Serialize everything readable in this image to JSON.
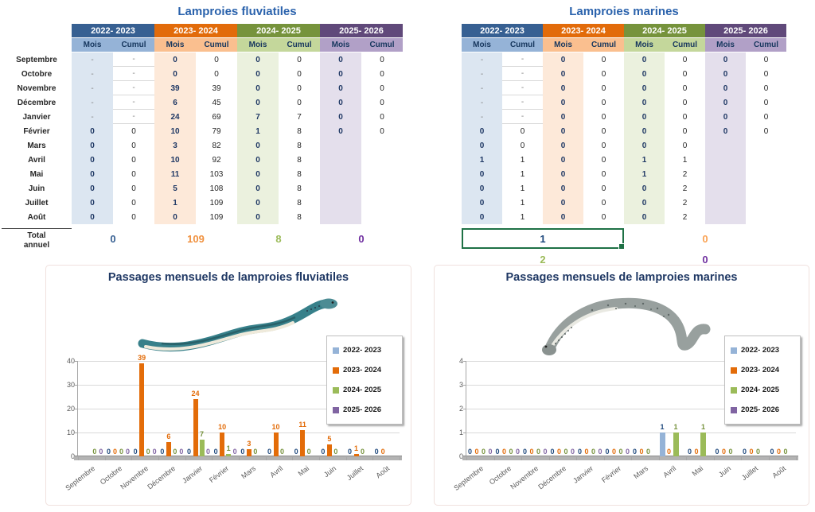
{
  "series_meta": [
    {
      "name": "2022- 2023",
      "header_bg": "#376092",
      "subheader_bg": "#95B3D7",
      "column_bg": "#DCE6F1",
      "bar_color": "#95B3D7",
      "label_color": "#1F497D"
    },
    {
      "name": "2023- 2024",
      "header_bg": "#E26B0A",
      "subheader_bg": "#FABF8F",
      "column_bg": "#FDE9D9",
      "bar_color": "#E36C09",
      "label_color": "#E36C09"
    },
    {
      "name": "2024- 2025",
      "header_bg": "#76933C",
      "subheader_bg": "#C4D79B",
      "column_bg": "#EBF1DE",
      "bar_color": "#9BBB59",
      "label_color": "#76923C"
    },
    {
      "name": "2025- 2026",
      "header_bg": "#60497A",
      "subheader_bg": "#B1A0C7",
      "column_bg": "#E4DFEC",
      "bar_color": "#8064A2",
      "label_color": "#8064A2"
    }
  ],
  "months": [
    "Septembre",
    "Octobre",
    "Novembre",
    "Décembre",
    "Janvier",
    "Février",
    "Mars",
    "Avril",
    "Mai",
    "Juin",
    "Juillet",
    "Août"
  ],
  "column_headers": {
    "mois": "Mois",
    "cumul": "Cumul"
  },
  "tables": [
    {
      "title": "Lamproies fluviatiles",
      "total_label_line1": "Total",
      "total_label_line2": "annuel",
      "rows": [
        [
          "-",
          "-",
          "0",
          "0",
          "0",
          "0",
          "0",
          "0"
        ],
        [
          "-",
          "-",
          "0",
          "0",
          "0",
          "0",
          "0",
          "0"
        ],
        [
          "-",
          "-",
          "39",
          "39",
          "0",
          "0",
          "0",
          "0"
        ],
        [
          "-",
          "-",
          "6",
          "45",
          "0",
          "0",
          "0",
          "0"
        ],
        [
          "-",
          "-",
          "24",
          "69",
          "7",
          "7",
          "0",
          "0"
        ],
        [
          "0",
          "0",
          "10",
          "79",
          "1",
          "8",
          "0",
          "0"
        ],
        [
          "0",
          "0",
          "3",
          "82",
          "0",
          "8",
          "",
          ""
        ],
        [
          "0",
          "0",
          "10",
          "92",
          "0",
          "8",
          "",
          ""
        ],
        [
          "0",
          "0",
          "11",
          "103",
          "0",
          "8",
          "",
          ""
        ],
        [
          "0",
          "0",
          "5",
          "108",
          "0",
          "8",
          "",
          ""
        ],
        [
          "0",
          "0",
          "1",
          "109",
          "0",
          "8",
          "",
          ""
        ],
        [
          "0",
          "0",
          "0",
          "109",
          "0",
          "8",
          "",
          ""
        ]
      ],
      "totals": [
        "0",
        "109",
        "8",
        "0"
      ],
      "totals_colors": [
        "#376092",
        "#F0913F",
        "#9BBB59",
        "#7030A0"
      ],
      "selected_total_index": null
    },
    {
      "title": "Lamproies marines",
      "rows": [
        [
          "-",
          "-",
          "0",
          "0",
          "0",
          "0",
          "0",
          "0"
        ],
        [
          "-",
          "-",
          "0",
          "0",
          "0",
          "0",
          "0",
          "0"
        ],
        [
          "-",
          "-",
          "0",
          "0",
          "0",
          "0",
          "0",
          "0"
        ],
        [
          "-",
          "-",
          "0",
          "0",
          "0",
          "0",
          "0",
          "0"
        ],
        [
          "-",
          "-",
          "0",
          "0",
          "0",
          "0",
          "0",
          "0"
        ],
        [
          "0",
          "0",
          "0",
          "0",
          "0",
          "0",
          "0",
          "0"
        ],
        [
          "0",
          "0",
          "0",
          "0",
          "0",
          "0",
          "",
          ""
        ],
        [
          "1",
          "1",
          "0",
          "0",
          "1",
          "1",
          "",
          ""
        ],
        [
          "0",
          "1",
          "0",
          "0",
          "1",
          "2",
          "",
          ""
        ],
        [
          "0",
          "1",
          "0",
          "0",
          "0",
          "2",
          "",
          ""
        ],
        [
          "0",
          "1",
          "0",
          "0",
          "0",
          "2",
          "",
          ""
        ],
        [
          "0",
          "1",
          "0",
          "0",
          "0",
          "2",
          "",
          ""
        ]
      ],
      "totals": [
        "1",
        "0",
        "2",
        "0"
      ],
      "totals_colors": [
        "#1F497D",
        "#F9A253",
        "#9BBB59",
        "#7030A0"
      ],
      "selected_total_index": 0
    }
  ],
  "selection": {
    "border_color": "#1E7145"
  },
  "chart_data": [
    {
      "type": "bar",
      "title": "Passages mensuels de lamproies fluviatiles",
      "categories": [
        "Septembre",
        "Octobre",
        "Novembre",
        "Décembre",
        "Janvier",
        "Février",
        "Mars",
        "Avril",
        "Mai",
        "Juin",
        "Juillet",
        "Août"
      ],
      "ylim": [
        0,
        40
      ],
      "yticks": [
        0,
        10,
        20,
        30,
        40
      ],
      "grid": true,
      "legend_position": "right-inside",
      "series": [
        {
          "name": "2022- 2023",
          "values": [
            null,
            0,
            0,
            0,
            0,
            0,
            0,
            0,
            0,
            0,
            0,
            0
          ]
        },
        {
          "name": "2023- 2024",
          "values": [
            0,
            0,
            39,
            6,
            24,
            10,
            3,
            10,
            11,
            5,
            1,
            0
          ]
        },
        {
          "name": "2024- 2025",
          "values": [
            0,
            0,
            0,
            0,
            7,
            1,
            0,
            0,
            0,
            0,
            0,
            0
          ]
        },
        {
          "name": "2025- 2026",
          "values": [
            0,
            0,
            0,
            0,
            0,
            0,
            null,
            null,
            null,
            null,
            null,
            null
          ]
        }
      ],
      "visible_marks": [
        [
          [
            2,
            null,
            "0"
          ],
          [
            3,
            null,
            "0"
          ]
        ],
        [
          [
            0,
            null,
            "0"
          ],
          [
            1,
            null,
            "0"
          ],
          [
            2,
            null,
            "0"
          ],
          [
            3,
            null,
            "0"
          ]
        ],
        [
          [
            0,
            null,
            "0"
          ],
          [
            1,
            39,
            "39"
          ],
          [
            2,
            null,
            "0"
          ],
          [
            3,
            null,
            "0"
          ]
        ],
        [
          [
            0,
            null,
            "0"
          ],
          [
            1,
            6,
            "6"
          ],
          [
            2,
            null,
            "0"
          ],
          [
            3,
            null,
            "0"
          ]
        ],
        [
          [
            0,
            null,
            "0"
          ],
          [
            1,
            24,
            "24"
          ],
          [
            2,
            7,
            "7"
          ],
          [
            3,
            null,
            "0"
          ]
        ],
        [
          [
            0,
            null,
            "0"
          ],
          [
            1,
            10,
            "10"
          ],
          [
            2,
            1,
            "1"
          ],
          [
            3,
            null,
            "0"
          ]
        ],
        [
          [
            0,
            null,
            "0"
          ],
          [
            1,
            3,
            "3"
          ],
          [
            2,
            null,
            "0"
          ]
        ],
        [
          [
            0,
            null,
            "0"
          ],
          [
            1,
            10,
            "10"
          ],
          [
            2,
            null,
            "0"
          ]
        ],
        [
          [
            0,
            null,
            "0"
          ],
          [
            1,
            11,
            "11"
          ],
          [
            2,
            null,
            "0"
          ]
        ],
        [
          [
            0,
            null,
            "0"
          ],
          [
            1,
            5,
            "5"
          ],
          [
            2,
            null,
            "0"
          ]
        ],
        [
          [
            0,
            null,
            "0"
          ],
          [
            1,
            1,
            "1"
          ],
          [
            2,
            null,
            "0"
          ]
        ],
        [
          [
            0,
            null,
            "0"
          ],
          [
            1,
            null,
            "0"
          ]
        ]
      ]
    },
    {
      "type": "bar",
      "title": "Passages mensuels de lamproies marines",
      "categories": [
        "Septembre",
        "Octobre",
        "Novembre",
        "Décembre",
        "Janvier",
        "Février",
        "Mars",
        "Avril",
        "Mai",
        "Juin",
        "Juillet",
        "Août"
      ],
      "ylim": [
        0,
        4
      ],
      "yticks": [
        0,
        1,
        2,
        3,
        4
      ],
      "grid": true,
      "legend_position": "right-inside",
      "series": [
        {
          "name": "2022- 2023",
          "values": [
            0,
            0,
            0,
            0,
            0,
            0,
            0,
            1,
            0,
            0,
            0,
            0
          ]
        },
        {
          "name": "2023- 2024",
          "values": [
            0,
            0,
            0,
            0,
            0,
            0,
            0,
            0,
            0,
            0,
            0,
            0
          ]
        },
        {
          "name": "2024- 2025",
          "values": [
            0,
            0,
            0,
            0,
            0,
            0,
            0,
            1,
            1,
            0,
            0,
            0
          ]
        },
        {
          "name": "2025- 2026",
          "values": [
            0,
            0,
            0,
            0,
            0,
            0,
            null,
            null,
            null,
            null,
            null,
            null
          ]
        }
      ],
      "visible_marks": [
        [
          [
            0,
            null,
            "0"
          ],
          [
            1,
            null,
            "0"
          ],
          [
            2,
            null,
            "0"
          ],
          [
            3,
            null,
            "0"
          ]
        ],
        [
          [
            0,
            null,
            "0"
          ],
          [
            1,
            null,
            "0"
          ],
          [
            2,
            null,
            "0"
          ],
          [
            3,
            null,
            "0"
          ]
        ],
        [
          [
            0,
            null,
            "0"
          ],
          [
            1,
            null,
            "0"
          ],
          [
            2,
            null,
            "0"
          ],
          [
            3,
            null,
            "0"
          ]
        ],
        [
          [
            0,
            null,
            "0"
          ],
          [
            1,
            null,
            "0"
          ],
          [
            2,
            null,
            "0"
          ],
          [
            3,
            null,
            "0"
          ]
        ],
        [
          [
            0,
            null,
            "0"
          ],
          [
            1,
            null,
            "0"
          ],
          [
            2,
            null,
            "0"
          ],
          [
            3,
            null,
            "0"
          ]
        ],
        [
          [
            0,
            null,
            "0"
          ],
          [
            1,
            null,
            "0"
          ],
          [
            2,
            null,
            "0"
          ],
          [
            3,
            null,
            "0"
          ]
        ],
        [
          [
            0,
            null,
            "0"
          ],
          [
            1,
            null,
            "0"
          ],
          [
            2,
            null,
            "0"
          ]
        ],
        [
          [
            0,
            1,
            "1"
          ],
          [
            1,
            null,
            "0"
          ],
          [
            2,
            1,
            "1"
          ]
        ],
        [
          [
            0,
            null,
            "0"
          ],
          [
            1,
            null,
            "0"
          ],
          [
            2,
            1,
            "1"
          ]
        ],
        [
          [
            0,
            null,
            "0"
          ],
          [
            1,
            null,
            "0"
          ],
          [
            2,
            null,
            "0"
          ]
        ],
        [
          [
            0,
            null,
            "0"
          ],
          [
            1,
            null,
            "0"
          ],
          [
            2,
            null,
            "0"
          ]
        ],
        [
          [
            0,
            null,
            "0"
          ],
          [
            1,
            null,
            "0"
          ],
          [
            2,
            null,
            "0"
          ]
        ]
      ]
    }
  ]
}
